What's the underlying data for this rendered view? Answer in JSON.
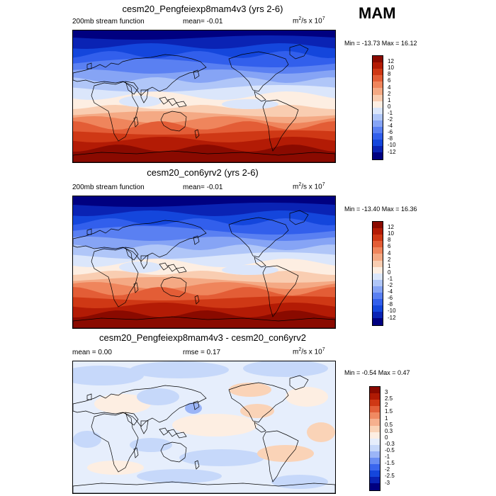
{
  "season": "MAM",
  "units_base": "m",
  "units_sup1": "2",
  "units_mid": "/s x 10",
  "units_sup2": "7",
  "colors": {
    "sf_scale": [
      "#000080",
      "#0a23b4",
      "#1446dc",
      "#325fec",
      "#5a80f2",
      "#86a4f5",
      "#b0c6f8",
      "#dbe6fb",
      "#fdeee2",
      "#f9cdb1",
      "#f4a984",
      "#ef855c",
      "#e35d36",
      "#cf3815",
      "#b31b05",
      "#8a0a00"
    ],
    "diff_scale": [
      "#000080",
      "#0a23b4",
      "#1446dc",
      "#3a66ee",
      "#6a8ef3",
      "#9bb5f7",
      "#c6d8fa",
      "#e6eefc",
      "#fdeee2",
      "#fad3b7",
      "#f6b08e",
      "#f08a62",
      "#e3603a",
      "#cf3815",
      "#b01a04",
      "#8a0a00"
    ]
  },
  "panels": [
    {
      "title": "cesm20_Pengfeiexp8mam4v3 (yrs 2-6)",
      "left_label": "200mb stream function",
      "center_label": "mean=  -0.01",
      "stats": "Min = -13.73 Max =  16.12",
      "colorbar_labels": [
        "12",
        "10",
        "8",
        "6",
        "4",
        "2",
        "1",
        "0",
        "-1",
        "-2",
        "-4",
        "-6",
        "-8",
        "-10",
        "-12"
      ]
    },
    {
      "title": "cesm20_con6yrv2 (yrs 2-6)",
      "left_label": "200mb stream function",
      "center_label": "mean=  -0.01",
      "stats": "Min = -13.40 Max =  16.36",
      "colorbar_labels": [
        "12",
        "10",
        "8",
        "6",
        "4",
        "2",
        "1",
        "0",
        "-1",
        "-2",
        "-4",
        "-6",
        "-8",
        "-10",
        "-12"
      ]
    },
    {
      "title": "cesm20_Pengfeiexp8mam4v3 - cesm20_con6yrv2",
      "left_label": "mean =  0.00",
      "center_label": "rmse =  0.17",
      "stats": "Min = -0.54 Max =   0.47",
      "colorbar_labels": [
        "3",
        "2.5",
        "2",
        "1.5",
        "1",
        "0.5",
        "0.3",
        "0",
        "-0.3",
        "-0.5",
        "-1",
        "-1.5",
        "-2",
        "-2.5",
        "-3"
      ]
    }
  ],
  "chart_data": [
    {
      "type": "heatmap",
      "title": "cesm20_Pengfeiexp8mam4v3 (yrs 2-6)",
      "variable": "200mb stream function",
      "units": "m2/s x 10^7",
      "mean": -0.01,
      "min": -13.73,
      "max": 16.12,
      "levels": [
        -12,
        -10,
        -8,
        -6,
        -4,
        -2,
        -1,
        0,
        1,
        2,
        4,
        6,
        8,
        10,
        12
      ]
    },
    {
      "type": "heatmap",
      "title": "cesm20_con6yrv2 (yrs 2-6)",
      "variable": "200mb stream function",
      "units": "m2/s x 10^7",
      "mean": -0.01,
      "min": -13.4,
      "max": 16.36,
      "levels": [
        -12,
        -10,
        -8,
        -6,
        -4,
        -2,
        -1,
        0,
        1,
        2,
        4,
        6,
        8,
        10,
        12
      ]
    },
    {
      "type": "heatmap",
      "title": "cesm20_Pengfeiexp8mam4v3 - cesm20_con6yrv2",
      "units": "m2/s x 10^7",
      "mean": 0.0,
      "rmse": 0.17,
      "min": -0.54,
      "max": 0.47,
      "levels": [
        -3,
        -2.5,
        -2,
        -1.5,
        -1,
        -0.5,
        -0.3,
        0,
        0.3,
        0.5,
        1,
        1.5,
        2,
        2.5,
        3
      ]
    }
  ]
}
